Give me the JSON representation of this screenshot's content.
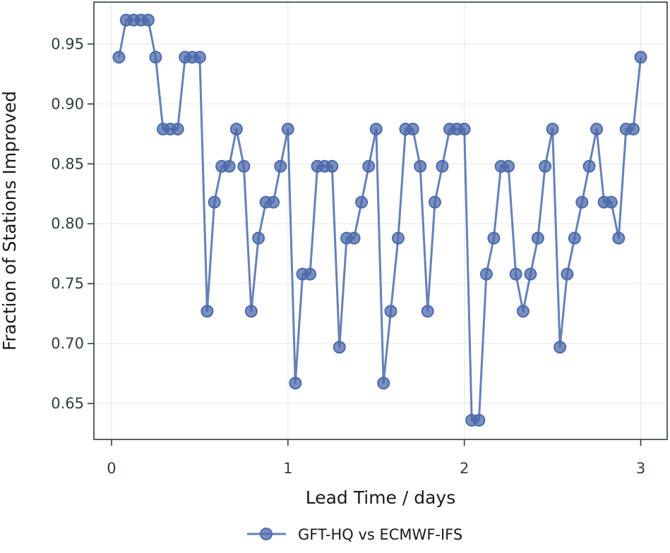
{
  "chart_data": {
    "type": "line",
    "title": "",
    "xlabel": "Lead Time / days",
    "ylabel": "Fraction of Stations Improved",
    "xlim": [
      -0.1,
      3.15
    ],
    "ylim": [
      0.62,
      0.985
    ],
    "xticks": [
      0,
      1,
      2,
      3
    ],
    "xtick_labels": [
      "0",
      "1",
      "2",
      "3"
    ],
    "yticks": [
      0.65,
      0.7,
      0.75,
      0.8,
      0.85,
      0.9,
      0.95
    ],
    "ytick_labels": [
      "0.65",
      "0.70",
      "0.75",
      "0.80",
      "0.85",
      "0.90",
      "0.95"
    ],
    "grid": true,
    "legend_position": "bottom-center",
    "colors": {
      "series": "#4c6aab",
      "axis": "#2f3e3c",
      "grid": "#e6e6e6"
    },
    "series": [
      {
        "name": "GFT-HQ vs ECMWF-IFS",
        "x": [
          0.042,
          0.083,
          0.125,
          0.167,
          0.208,
          0.25,
          0.292,
          0.333,
          0.375,
          0.417,
          0.458,
          0.5,
          0.542,
          0.583,
          0.625,
          0.667,
          0.708,
          0.75,
          0.792,
          0.833,
          0.875,
          0.917,
          0.958,
          1.0,
          1.042,
          1.083,
          1.125,
          1.167,
          1.208,
          1.25,
          1.292,
          1.333,
          1.375,
          1.417,
          1.458,
          1.5,
          1.542,
          1.583,
          1.625,
          1.667,
          1.708,
          1.75,
          1.792,
          1.833,
          1.875,
          1.917,
          1.958,
          2.0,
          2.042,
          2.083,
          2.125,
          2.167,
          2.208,
          2.25,
          2.292,
          2.333,
          2.375,
          2.417,
          2.458,
          2.5,
          2.542,
          2.583,
          2.625,
          2.667,
          2.708,
          2.75,
          2.792,
          2.833,
          2.875,
          2.917,
          2.958,
          3.0
        ],
        "y": [
          0.939,
          0.97,
          0.97,
          0.97,
          0.97,
          0.939,
          0.879,
          0.879,
          0.879,
          0.939,
          0.939,
          0.939,
          0.727,
          0.818,
          0.848,
          0.848,
          0.879,
          0.848,
          0.727,
          0.788,
          0.818,
          0.818,
          0.848,
          0.879,
          0.667,
          0.758,
          0.758,
          0.848,
          0.848,
          0.848,
          0.697,
          0.788,
          0.788,
          0.818,
          0.848,
          0.879,
          0.667,
          0.727,
          0.788,
          0.879,
          0.879,
          0.848,
          0.727,
          0.818,
          0.848,
          0.879,
          0.879,
          0.879,
          0.636,
          0.636,
          0.758,
          0.788,
          0.848,
          0.848,
          0.758,
          0.727,
          0.758,
          0.788,
          0.848,
          0.879,
          0.697,
          0.758,
          0.788,
          0.818,
          0.848,
          0.879,
          0.818,
          0.818,
          0.788,
          0.879,
          0.879,
          0.939
        ]
      }
    ]
  }
}
